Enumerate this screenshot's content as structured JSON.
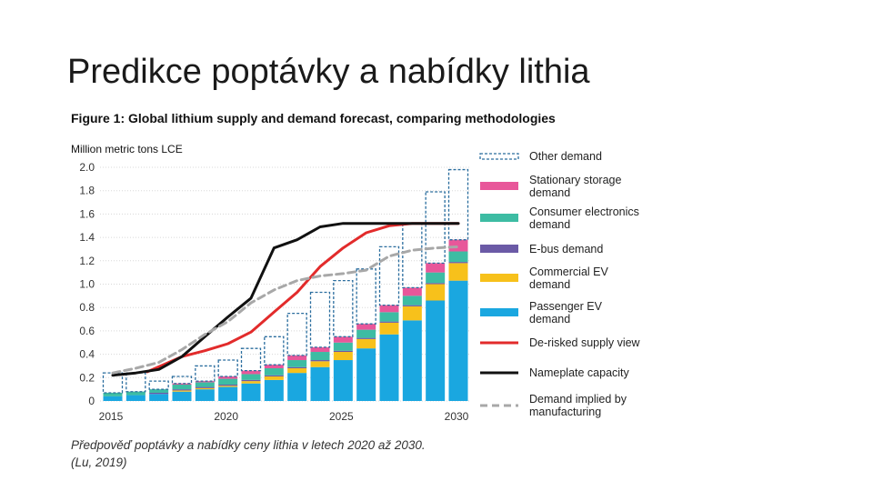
{
  "slide": {
    "title": "Predikce poptávky a nabídky lithia",
    "caption_line1": "Předpověď poptávky a nabídky ceny lithia v letech 2020 až 2030.",
    "caption_line2": "(Lu, 2019)"
  },
  "chart_data": {
    "type": "bar",
    "title": "Figure 1: Global lithium supply and demand forecast, comparing methodologies",
    "ylabel": "Million metric tons LCE",
    "xlabel": "",
    "ylim": [
      0,
      2.0
    ],
    "yticks": [
      "0",
      "0.2",
      "0.4",
      "0.6",
      "0.8",
      "1.0",
      "1.2",
      "1.4",
      "1.6",
      "1.8",
      "2.0"
    ],
    "xticks": [
      "2015",
      "2020",
      "2025",
      "2030"
    ],
    "grid": true,
    "legend_position": "right",
    "years": [
      2015,
      2016,
      2017,
      2018,
      2019,
      2020,
      2021,
      2022,
      2023,
      2024,
      2025,
      2026,
      2027,
      2028,
      2029,
      2030
    ],
    "stacked_series": [
      {
        "name": "Passenger EV demand",
        "color": "#1aa7e0",
        "values": [
          0.04,
          0.05,
          0.06,
          0.08,
          0.1,
          0.12,
          0.15,
          0.18,
          0.24,
          0.29,
          0.35,
          0.45,
          0.57,
          0.69,
          0.86,
          1.03
        ]
      },
      {
        "name": "Commercial EV demand",
        "color": "#f7c11b",
        "values": [
          0.0,
          0.0,
          0.0,
          0.01,
          0.01,
          0.01,
          0.02,
          0.03,
          0.04,
          0.05,
          0.07,
          0.08,
          0.1,
          0.12,
          0.14,
          0.15
        ]
      },
      {
        "name": "E-bus demand",
        "color": "#6b5aa6",
        "values": [
          0.0,
          0.0,
          0.01,
          0.01,
          0.01,
          0.01,
          0.01,
          0.01,
          0.01,
          0.01,
          0.01,
          0.01,
          0.01,
          0.01,
          0.01,
          0.01
        ]
      },
      {
        "name": "Consumer electronics demand",
        "color": "#3dbca3",
        "values": [
          0.03,
          0.03,
          0.03,
          0.04,
          0.04,
          0.05,
          0.05,
          0.06,
          0.06,
          0.07,
          0.07,
          0.07,
          0.08,
          0.08,
          0.09,
          0.09
        ]
      },
      {
        "name": "Stationary storage demand",
        "color": "#e8579a",
        "values": [
          0.0,
          0.0,
          0.0,
          0.01,
          0.01,
          0.02,
          0.03,
          0.03,
          0.04,
          0.04,
          0.05,
          0.05,
          0.06,
          0.07,
          0.08,
          0.1
        ]
      },
      {
        "name": "Other demand",
        "color": "#2a6d9e",
        "dashed": true,
        "values": [
          0.17,
          0.16,
          0.07,
          0.06,
          0.13,
          0.14,
          0.19,
          0.24,
          0.36,
          0.47,
          0.48,
          0.47,
          0.5,
          0.55,
          0.61,
          0.6
        ]
      }
    ],
    "line_series": [
      {
        "name": "De-risked supply view",
        "color": "#e22b2b",
        "dash": false,
        "x": [
          2016.5,
          2018,
          2019,
          2020,
          2021,
          2022,
          2023,
          2024,
          2025,
          2026,
          2027,
          2028,
          2029,
          2030
        ],
        "values": [
          0.25,
          0.38,
          0.43,
          0.49,
          0.59,
          0.76,
          0.93,
          1.15,
          1.31,
          1.44,
          1.5,
          1.52,
          1.52,
          1.52
        ]
      },
      {
        "name": "Nameplate capacity",
        "color": "#111111",
        "dash": false,
        "x": [
          2015,
          2016,
          2017,
          2018,
          2019,
          2020,
          2021,
          2022,
          2023,
          2024,
          2025,
          2026,
          2027,
          2028,
          2029,
          2030
        ],
        "values": [
          0.22,
          0.24,
          0.27,
          0.38,
          0.55,
          0.72,
          0.88,
          1.31,
          1.38,
          1.49,
          1.52,
          1.52,
          1.52,
          1.52,
          1.52,
          1.52
        ]
      },
      {
        "name": "Demand implied by manufacturing",
        "color": "#a8a8a8",
        "dash": true,
        "x": [
          2015,
          2016,
          2017,
          2018,
          2019,
          2020,
          2021,
          2022,
          2023,
          2024,
          2025,
          2026,
          2027,
          2028,
          2029,
          2030
        ],
        "values": [
          0.24,
          0.28,
          0.33,
          0.44,
          0.57,
          0.68,
          0.84,
          0.95,
          1.03,
          1.07,
          1.09,
          1.12,
          1.24,
          1.29,
          1.31,
          1.32
        ]
      }
    ],
    "legend": [
      {
        "key": "Other demand",
        "line1": "Other demand",
        "line2": "",
        "style": "dashed-box",
        "color": "#2a6d9e"
      },
      {
        "key": "Stationary storage demand",
        "line1": "Stationary storage",
        "line2": "demand",
        "style": "box",
        "color": "#e8579a"
      },
      {
        "key": "Consumer electronics demand",
        "line1": "Consumer electronics",
        "line2": "demand",
        "style": "box",
        "color": "#3dbca3"
      },
      {
        "key": "E-bus demand",
        "line1": "E-bus demand",
        "line2": "",
        "style": "box",
        "color": "#6b5aa6"
      },
      {
        "key": "Commercial EV demand",
        "line1": "Commercial EV",
        "line2": "demand",
        "style": "box",
        "color": "#f7c11b"
      },
      {
        "key": "Passenger EV demand",
        "line1": "Passenger EV",
        "line2": "demand",
        "style": "box",
        "color": "#1aa7e0"
      },
      {
        "key": "De-risked supply view",
        "line1": "De-risked supply view",
        "line2": "",
        "style": "line",
        "color": "#e22b2b"
      },
      {
        "key": "Nameplate capacity",
        "line1": "Nameplate capacity",
        "line2": "",
        "style": "line",
        "color": "#111111"
      },
      {
        "key": "Demand implied by manufacturing",
        "line1": "Demand implied by",
        "line2": "manufacturing",
        "style": "dashed-line",
        "color": "#a8a8a8"
      }
    ]
  }
}
